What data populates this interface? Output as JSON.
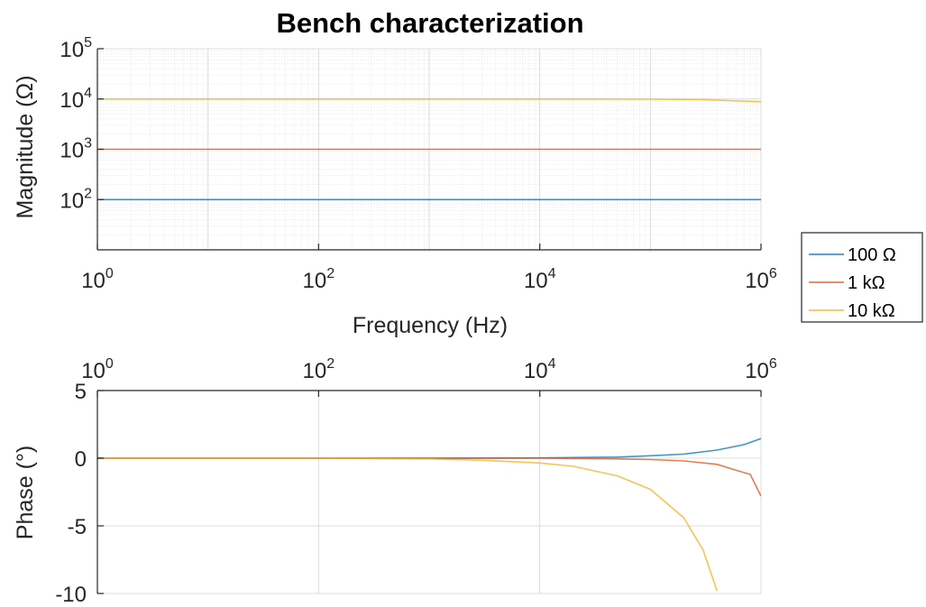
{
  "chart_data": [
    {
      "type": "line",
      "panel": "magnitude",
      "title": "Bench characterization",
      "xlabel": "Frequency (Hz)",
      "ylabel": "Magnitude (Ω)",
      "xscale": "log",
      "yscale": "log",
      "xlim": [
        1,
        1000000
      ],
      "ylim": [
        10,
        100000
      ],
      "x_ticks": [
        1,
        100,
        10000,
        1000000
      ],
      "x_tick_labels": [
        {
          "base": "10",
          "exp": "0"
        },
        {
          "base": "10",
          "exp": "2"
        },
        {
          "base": "10",
          "exp": "4"
        },
        {
          "base": "10",
          "exp": "6"
        }
      ],
      "y_ticks": [
        100,
        1000,
        10000,
        100000
      ],
      "y_tick_labels": [
        {
          "base": "10",
          "exp": "2"
        },
        {
          "base": "10",
          "exp": "3"
        },
        {
          "base": "10",
          "exp": "4"
        },
        {
          "base": "10",
          "exp": "5"
        }
      ],
      "grid": true,
      "minor_grid": true,
      "x": [
        1,
        10,
        100,
        1000,
        10000,
        100000,
        300000,
        1000000
      ],
      "series": [
        {
          "name": "100 Ω",
          "color": "#0072BD",
          "values": [
            100,
            100,
            100,
            100,
            100,
            100,
            100,
            100
          ]
        },
        {
          "name": "1 kΩ",
          "color": "#D95319",
          "values": [
            1000,
            1000,
            1000,
            1000,
            1000,
            1000,
            1000,
            1000
          ]
        },
        {
          "name": "10 kΩ",
          "color": "#EDB120",
          "values": [
            10000,
            10000,
            10000,
            10000,
            10000,
            9900,
            9700,
            8800
          ]
        }
      ]
    },
    {
      "type": "line",
      "panel": "phase",
      "ylabel": "Phase (°)",
      "xscale": "log",
      "xlim": [
        1,
        1000000
      ],
      "ylim": [
        -10,
        5
      ],
      "x_ticks": [
        1,
        100,
        10000,
        1000000
      ],
      "x_tick_labels": [
        {
          "base": "10",
          "exp": "0"
        },
        {
          "base": "10",
          "exp": "2"
        },
        {
          "base": "10",
          "exp": "4"
        },
        {
          "base": "10",
          "exp": "6"
        }
      ],
      "x_axis_location": "top",
      "y_ticks": [
        -10,
        -5,
        0,
        5
      ],
      "y_tick_labels": [
        "-10",
        "-5",
        "0",
        "5"
      ],
      "grid": true,
      "series": [
        {
          "name": "100 Ω",
          "color": "#0072BD",
          "x": [
            1,
            100,
            1000,
            10000,
            50000,
            100000,
            200000,
            400000,
            700000,
            1000000
          ],
          "values": [
            0,
            0,
            0,
            0.02,
            0.08,
            0.18,
            0.3,
            0.6,
            1.0,
            1.45
          ]
        },
        {
          "name": "1 kΩ",
          "color": "#D95319",
          "x": [
            1,
            100,
            1000,
            10000,
            50000,
            100000,
            200000,
            400000,
            600000,
            800000,
            1000000
          ],
          "values": [
            0,
            0,
            0,
            0,
            -0.05,
            -0.1,
            -0.2,
            -0.45,
            -0.9,
            -1.2,
            -2.8
          ]
        },
        {
          "name": "10 kΩ",
          "color": "#EDB120",
          "x": [
            1,
            100,
            1000,
            3000,
            10000,
            20000,
            50000,
            100000,
            200000,
            300000,
            400000
          ],
          "values": [
            0,
            0,
            -0.05,
            -0.15,
            -0.35,
            -0.6,
            -1.3,
            -2.3,
            -4.4,
            -6.8,
            -9.8
          ]
        }
      ]
    }
  ],
  "legend": {
    "location": "right",
    "entries": [
      {
        "label": "100 Ω",
        "color": "#0072BD"
      },
      {
        "label": "1 kΩ",
        "color": "#D95319"
      },
      {
        "label": "10 kΩ",
        "color": "#EDB120"
      }
    ]
  }
}
